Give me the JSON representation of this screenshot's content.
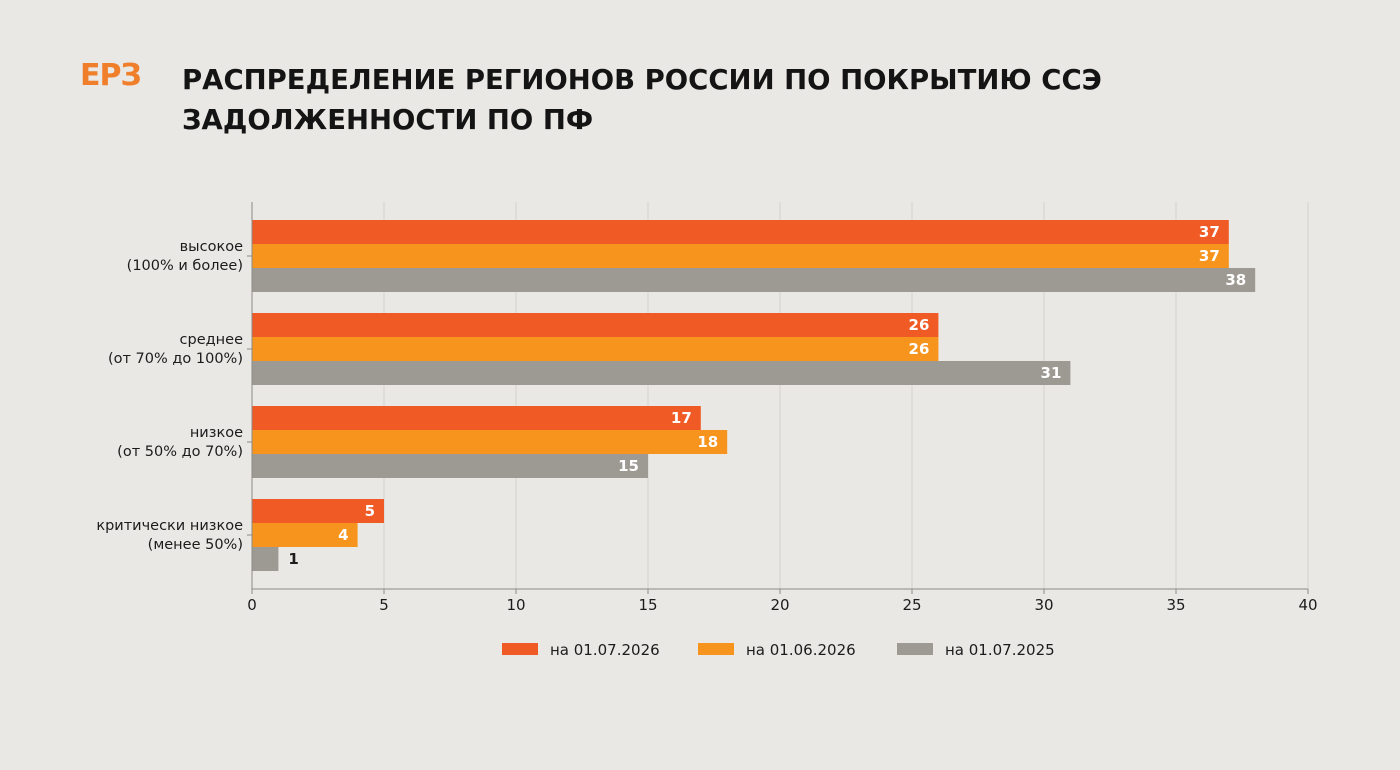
{
  "logo": "ЕРЗ",
  "title_line1": "РАСПРЕДЕЛЕНИЕ РЕГИОНОВ РОССИИ ПО ПОКРЫТИЮ ССЭ",
  "title_line2": "ЗАДОЛЖЕННОСТИ ПО ПФ",
  "chart_data": {
    "type": "bar",
    "orientation": "horizontal",
    "categories": [
      [
        "высокое",
        "(100% и более)"
      ],
      [
        "среднее",
        "(от 70% до 100%)"
      ],
      [
        "низкое",
        "(от 50% до 70%)"
      ],
      [
        "критически низкое",
        "(менее 50%)"
      ]
    ],
    "series": [
      {
        "name": "на 01.07.2026",
        "color": "#f05a24",
        "values": [
          37,
          26,
          17,
          5
        ]
      },
      {
        "name": "на 01.06.2026",
        "color": "#f7941e",
        "values": [
          37,
          26,
          18,
          4
        ]
      },
      {
        "name": "на 01.07.2025",
        "color": "#9d9a93",
        "values": [
          38,
          31,
          15,
          1
        ]
      }
    ],
    "xlim": [
      0,
      40
    ],
    "xticks": [
      0,
      5,
      10,
      15,
      20,
      25,
      30,
      35,
      40
    ],
    "grid": true,
    "legend_position": "bottom",
    "data_labels": true
  }
}
